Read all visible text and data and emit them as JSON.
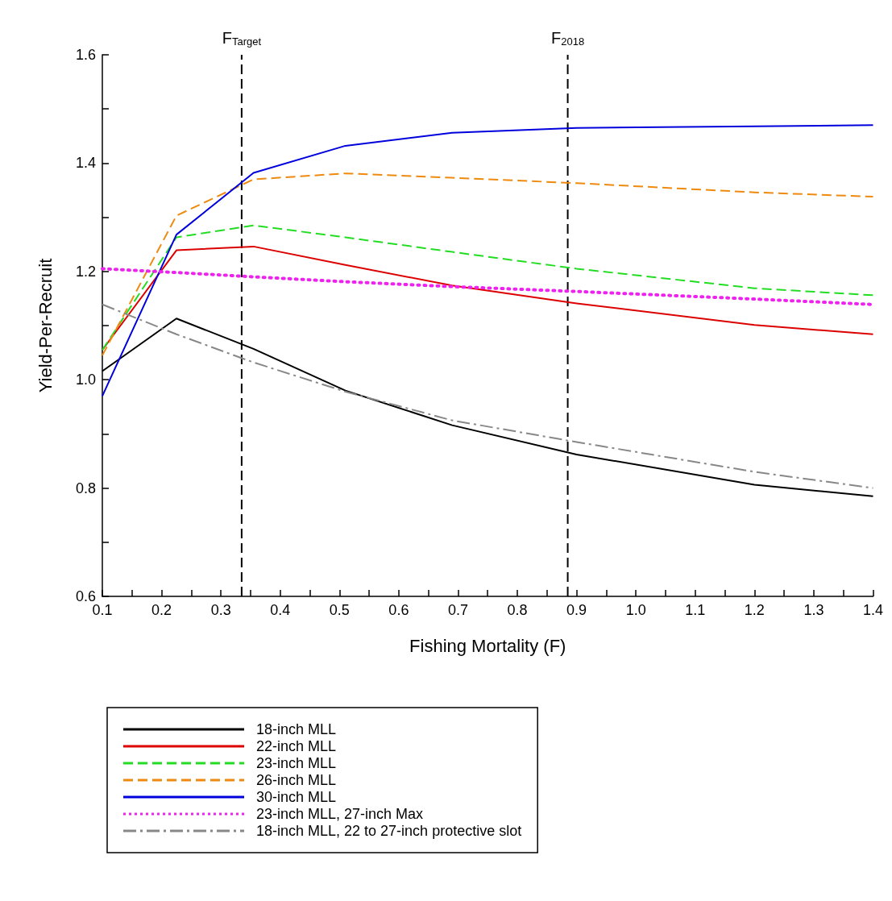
{
  "chart_data": {
    "type": "line",
    "xlabel": "Fishing Mortality (F)",
    "ylabel": "Yield-Per-Recruit",
    "x": [
      0.1,
      0.225,
      0.355,
      0.51,
      0.69,
      0.9,
      1.2,
      1.4
    ],
    "series": [
      {
        "name": "18-inch MLL",
        "color": "#000000",
        "line_style": "solid",
        "values": [
          1.016,
          1.113,
          1.057,
          0.98,
          0.916,
          0.862,
          0.806,
          0.785
        ]
      },
      {
        "name": "22-inch MLL",
        "color": "#dd0000",
        "line_style": "solid",
        "values": [
          1.055,
          1.239,
          1.246,
          1.212,
          1.174,
          1.141,
          1.101,
          1.084
        ]
      },
      {
        "name": "23-inch MLL",
        "color": "#22dd22",
        "line_style": "dashed",
        "values": [
          1.055,
          1.263,
          1.285,
          1.263,
          1.236,
          1.205,
          1.169,
          1.156
        ]
      },
      {
        "name": "26-inch MLL",
        "color": "#ee8a10",
        "line_style": "dashed",
        "values": [
          1.045,
          1.303,
          1.37,
          1.381,
          1.373,
          1.363,
          1.346,
          1.338
        ]
      },
      {
        "name": "30-inch MLL",
        "color": "#0000dd",
        "line_style": "solid",
        "values": [
          0.97,
          1.268,
          1.382,
          1.432,
          1.456,
          1.465,
          1.468,
          1.47
        ]
      },
      {
        "name": "23-inch MLL, 27-inch Max",
        "color": "#ee22ee",
        "line_style": "dotted",
        "values": [
          1.205,
          1.198,
          1.19,
          1.181,
          1.172,
          1.163,
          1.149,
          1.139
        ]
      },
      {
        "name": "18-inch MLL, 22 to 27-inch protective slot",
        "color": "#888888",
        "line_style": "dashdot",
        "values": [
          1.139,
          1.084,
          1.032,
          0.978,
          0.925,
          0.885,
          0.83,
          0.8
        ]
      }
    ],
    "xlim": [
      0.1,
      1.4
    ],
    "xticks": [
      {
        "value": 0.1,
        "label": "0.1"
      },
      {
        "value": 0.15,
        "label": null
      },
      {
        "value": 0.2,
        "label": "0.2"
      },
      {
        "value": 0.25,
        "label": null
      },
      {
        "value": 0.3,
        "label": "0.3"
      },
      {
        "value": 0.35,
        "label": null
      },
      {
        "value": 0.4,
        "label": "0.4"
      },
      {
        "value": 0.45,
        "label": null
      },
      {
        "value": 0.5,
        "label": "0.5"
      },
      {
        "value": 0.55,
        "label": null
      },
      {
        "value": 0.6,
        "label": "0.6"
      },
      {
        "value": 0.65,
        "label": null
      },
      {
        "value": 0.7,
        "label": "0.7"
      },
      {
        "value": 0.75,
        "label": null
      },
      {
        "value": 0.8,
        "label": "0.8"
      },
      {
        "value": 0.85,
        "label": null
      },
      {
        "value": 0.9,
        "label": "0.9"
      },
      {
        "value": 0.95,
        "label": null
      },
      {
        "value": 1,
        "label": "1.0"
      },
      {
        "value": 1.05,
        "label": null
      },
      {
        "value": 1.1,
        "label": "1.1"
      },
      {
        "value": 1.15,
        "label": null
      },
      {
        "value": 1.2,
        "label": "1.2"
      },
      {
        "value": 1.25,
        "label": null
      },
      {
        "value": 1.3,
        "label": "1.3"
      },
      {
        "value": 1.35,
        "label": null
      },
      {
        "value": 1.4,
        "label": "1.4"
      }
    ],
    "ylim": [
      0.6,
      1.6
    ],
    "yticks": [
      {
        "value": 0.6,
        "label": "0.6"
      },
      {
        "value": 0.7,
        "label": null
      },
      {
        "value": 0.8,
        "label": "0.8"
      },
      {
        "value": 0.9,
        "label": null
      },
      {
        "value": 1,
        "label": "1.0"
      },
      {
        "value": 1.1,
        "label": null
      },
      {
        "value": 1.2,
        "label": "1.2"
      },
      {
        "value": 1.3,
        "label": null
      },
      {
        "value": 1.4,
        "label": "1.4"
      },
      {
        "value": 1.5,
        "label": null
      },
      {
        "value": 1.6,
        "label": "1.6"
      }
    ],
    "ref_lines": [
      {
        "axis": "x",
        "value": 0.335,
        "label": "F$_{Target}$",
        "color": "#000000",
        "line_style": "dashed"
      },
      {
        "axis": "x",
        "value": 0.885,
        "label": "F$_{2018}$",
        "color": "#000000",
        "line_style": "dashed"
      }
    ],
    "grid": false,
    "legend": "bottom",
    "marker": "none"
  }
}
